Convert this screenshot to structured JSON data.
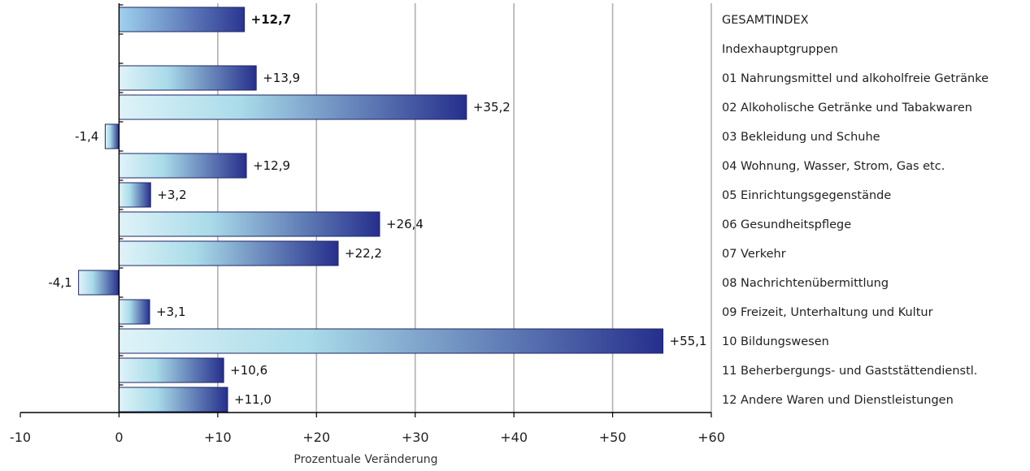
{
  "chart_data": {
    "type": "bar",
    "orientation": "horizontal",
    "xlabel": "Prozentuale Veränderung",
    "xlim": [
      -10,
      60
    ],
    "xticks": [
      "-10",
      "0",
      "+10",
      "+20",
      "+30",
      "+40",
      "+50",
      "+60"
    ],
    "grid": "vertical",
    "categories": [
      "GESAMTINDEX",
      "01 Nahrungsmittel und alkoholfreie Getränke",
      "02 Alkoholische Getränke und Tabakwaren",
      "03 Bekleidung und Schuhe",
      "04 Wohnung, Wasser, Strom, Gas etc.",
      "05 Einrichtungsgegenstände",
      "06 Gesundheitspflege",
      "07 Verkehr",
      "08 Nachrichtenübermittlung",
      "09 Freizeit, Unterhaltung und Kultur",
      "10 Bildungswesen",
      "11 Beherbergungs- und Gaststättendienstl.",
      "12 Andere Waren und Dienstleistungen"
    ],
    "values": [
      12.7,
      13.9,
      35.2,
      -1.4,
      12.9,
      3.2,
      26.4,
      22.2,
      -4.1,
      3.1,
      55.1,
      10.6,
      11.0
    ],
    "value_labels": [
      "+12,7",
      "+13,9",
      "+35,2",
      "-1,4",
      "+12,9",
      "+3,2",
      "+26,4",
      "+22,2",
      "-4,1",
      "+3,1",
      "+55,1",
      "+10,6",
      "+11,0"
    ],
    "group_heading": "Indexhauptgruppen",
    "colors": {
      "bar_gradient_start": "#dff3f8",
      "bar_gradient_mid": "#a9dbe9",
      "bar_gradient_end": "#262f8c",
      "total_gradient_start": "#9fd2ee",
      "total_gradient_end": "#2b3591",
      "grid": "#b0b0b0",
      "axis": "#000000"
    }
  }
}
